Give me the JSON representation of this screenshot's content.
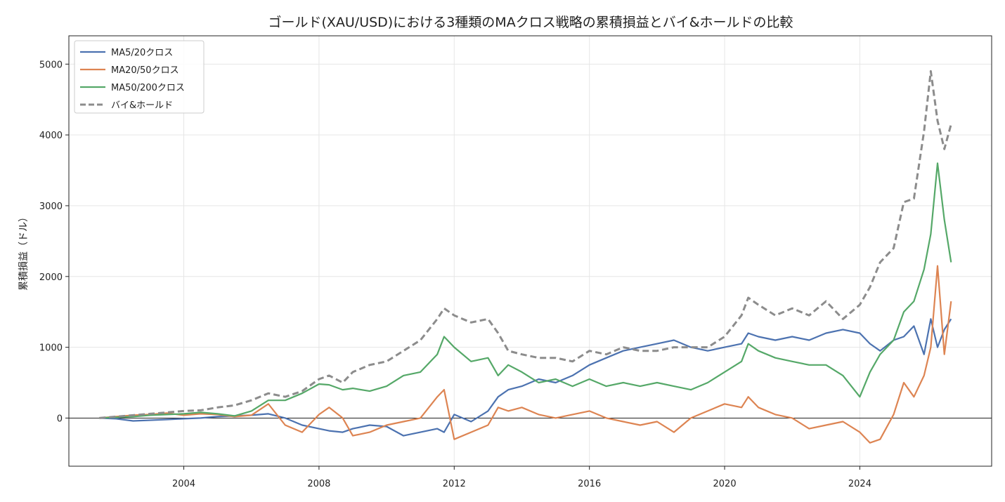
{
  "chart_data": {
    "type": "line",
    "title": "ゴールド(XAU/USD)における3種類のMAクロス戦略の累積損益とバイ&ホールドの比較",
    "xlabel": "",
    "ylabel": "累積損益（ドル）",
    "xlim": [
      2000.6,
      2027.9
    ],
    "ylim": [
      -680,
      5400
    ],
    "x_ticks": [
      "2004",
      "2008",
      "2012",
      "2016",
      "2020",
      "2024"
    ],
    "x_tick_values": [
      2004,
      2008,
      2012,
      2016,
      2020,
      2024
    ],
    "y_ticks": [
      0,
      1000,
      2000,
      3000,
      4000,
      5000
    ],
    "y_tick_labels": [
      "0",
      "1000",
      "2000",
      "3000",
      "4000",
      "5000"
    ],
    "grid": true,
    "zero_line": 0,
    "legend_position": "top-left",
    "x": [
      2001.5,
      2002.0,
      2002.5,
      2003.0,
      2003.5,
      2004.0,
      2004.5,
      2005.0,
      2005.5,
      2006.0,
      2006.5,
      2007.0,
      2007.5,
      2008.0,
      2008.3,
      2008.7,
      2009.0,
      2009.5,
      2010.0,
      2010.5,
      2011.0,
      2011.5,
      2011.7,
      2012.0,
      2012.5,
      2013.0,
      2013.3,
      2013.6,
      2014.0,
      2014.5,
      2015.0,
      2015.5,
      2016.0,
      2016.5,
      2017.0,
      2017.5,
      2018.0,
      2018.5,
      2019.0,
      2019.5,
      2020.0,
      2020.5,
      2020.7,
      2021.0,
      2021.5,
      2022.0,
      2022.5,
      2023.0,
      2023.5,
      2024.0,
      2024.3,
      2024.6,
      2025.0,
      2025.3,
      2025.6,
      2025.9,
      2026.1,
      2026.3,
      2026.5,
      2026.7
    ],
    "series": [
      {
        "name": "MA5/20クロス",
        "color": "#4c72b0",
        "dashed": false,
        "values": [
          0,
          -10,
          -40,
          -30,
          -20,
          -10,
          0,
          20,
          30,
          40,
          60,
          0,
          -100,
          -150,
          -180,
          -200,
          -150,
          -100,
          -120,
          -250,
          -200,
          -150,
          -200,
          50,
          -50,
          100,
          300,
          400,
          450,
          550,
          500,
          600,
          750,
          850,
          950,
          1000,
          1050,
          1100,
          1000,
          950,
          1000,
          1050,
          1200,
          1150,
          1100,
          1150,
          1100,
          1200,
          1250,
          1200,
          1050,
          950,
          1100,
          1150,
          1300,
          900,
          1400,
          1000,
          1250,
          1400
        ]
      },
      {
        "name": "MA20/50クロス",
        "color": "#dd8452",
        "dashed": false,
        "values": [
          0,
          20,
          40,
          50,
          70,
          40,
          60,
          50,
          20,
          40,
          200,
          -100,
          -200,
          50,
          150,
          0,
          -250,
          -200,
          -100,
          -50,
          0,
          300,
          400,
          -300,
          -200,
          -100,
          150,
          100,
          150,
          50,
          0,
          50,
          100,
          0,
          -50,
          -100,
          -50,
          -200,
          0,
          100,
          200,
          150,
          300,
          150,
          50,
          0,
          -150,
          -100,
          -50,
          -200,
          -350,
          -300,
          50,
          500,
          300,
          600,
          1000,
          2150,
          900,
          1650
        ]
      },
      {
        "name": "MA50/200クロス",
        "color": "#55a868",
        "dashed": false,
        "values": [
          0,
          10,
          20,
          40,
          50,
          60,
          80,
          60,
          30,
          100,
          250,
          250,
          350,
          480,
          470,
          400,
          420,
          380,
          450,
          600,
          650,
          900,
          1150,
          1000,
          800,
          850,
          600,
          750,
          650,
          500,
          550,
          450,
          550,
          450,
          500,
          450,
          500,
          450,
          400,
          500,
          650,
          800,
          1050,
          950,
          850,
          800,
          750,
          750,
          600,
          300,
          650,
          900,
          1100,
          1500,
          1650,
          2100,
          2600,
          3600,
          2800,
          2200
        ]
      },
      {
        "name": "バイ&ホールド",
        "color": "#8c8c8c",
        "dashed": true,
        "values": [
          0,
          20,
          40,
          60,
          80,
          100,
          110,
          150,
          180,
          250,
          350,
          300,
          380,
          550,
          600,
          500,
          650,
          750,
          800,
          950,
          1100,
          1400,
          1550,
          1450,
          1350,
          1400,
          1200,
          950,
          900,
          850,
          850,
          800,
          950,
          900,
          1000,
          950,
          950,
          1000,
          1000,
          1000,
          1150,
          1450,
          1700,
          1600,
          1450,
          1550,
          1450,
          1650,
          1400,
          1600,
          1850,
          2200,
          2400,
          3050,
          3100,
          4050,
          4900,
          4200,
          3800,
          4150
        ]
      }
    ]
  }
}
